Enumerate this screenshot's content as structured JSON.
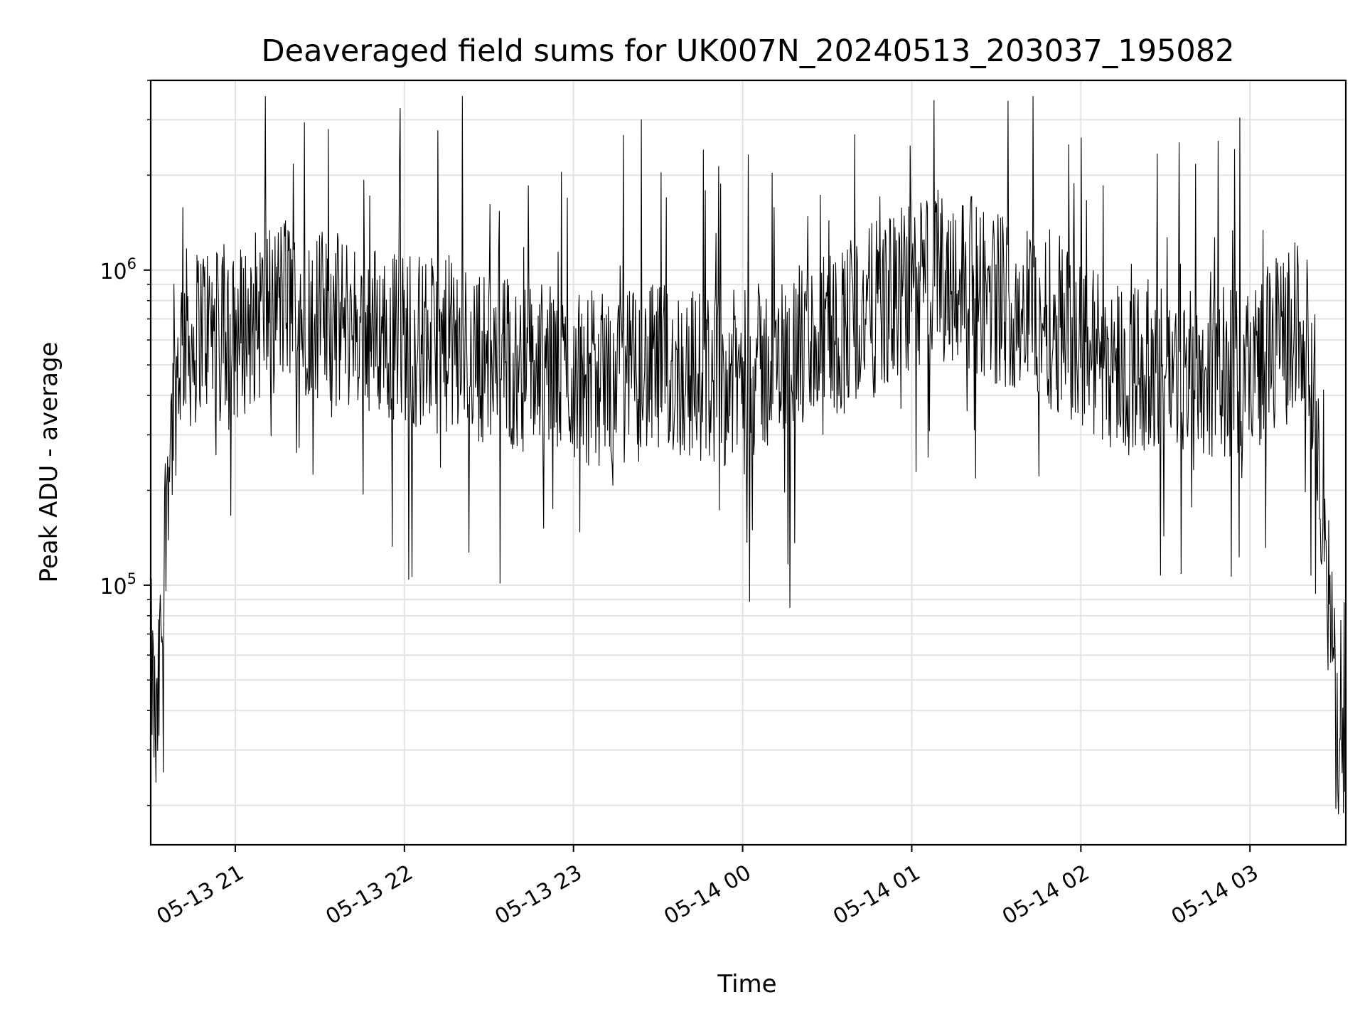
{
  "chart_data": {
    "type": "line",
    "title": "Deaveraged field sums for UK007N_20240513_203037_195082",
    "xlabel": "Time",
    "ylabel": "Peak ADU - average",
    "yscale": "log",
    "ylim": [
      15000,
      4000000
    ],
    "xlim": [
      "2024-05-13 20:30",
      "2024-05-14 03:34"
    ],
    "grid": true,
    "line_color": "#000000",
    "x_ticks": [
      {
        "value": "2024-05-13 21:00",
        "label": "05-13 21"
      },
      {
        "value": "2024-05-13 22:00",
        "label": "05-13 22"
      },
      {
        "value": "2024-05-13 23:00",
        "label": "05-13 23"
      },
      {
        "value": "2024-05-14 00:00",
        "label": "05-14 00"
      },
      {
        "value": "2024-05-14 01:00",
        "label": "05-14 01"
      },
      {
        "value": "2024-05-14 02:00",
        "label": "05-14 02"
      },
      {
        "value": "2024-05-14 03:00",
        "label": "05-14 03"
      }
    ],
    "y_ticks": [
      {
        "value": 100000,
        "base": "10",
        "exp": "5"
      },
      {
        "value": 1000000,
        "base": "10",
        "exp": "6"
      }
    ],
    "series": [
      {
        "x": [
          "2024-05-13 20:30",
          "2024-05-13 20:32",
          "2024-05-13 20:34",
          "2024-05-13 20:36",
          "2024-05-13 20:38",
          "2024-05-13 20:40",
          "2024-05-13 20:42",
          "2024-05-13 20:45",
          "2024-05-13 20:48",
          "2024-05-13 20:52",
          "2024-05-13 20:57",
          "2024-05-13 21:02",
          "2024-05-13 21:06",
          "2024-05-13 21:12",
          "2024-05-13 21:18",
          "2024-05-13 21:25",
          "2024-05-13 21:33",
          "2024-05-13 21:40",
          "2024-05-13 21:48",
          "2024-05-13 21:55",
          "2024-05-13 22:02",
          "2024-05-13 22:10",
          "2024-05-13 22:18",
          "2024-05-13 22:25",
          "2024-05-13 22:33",
          "2024-05-13 22:40",
          "2024-05-13 22:48",
          "2024-05-13 22:55",
          "2024-05-13 23:03",
          "2024-05-13 23:10",
          "2024-05-13 23:18",
          "2024-05-13 23:25",
          "2024-05-13 23:33",
          "2024-05-13 23:40",
          "2024-05-13 23:48",
          "2024-05-13 23:55",
          "2024-05-14 00:03",
          "2024-05-14 00:10",
          "2024-05-14 00:18",
          "2024-05-14 00:25",
          "2024-05-14 00:33",
          "2024-05-14 00:40",
          "2024-05-14 00:48",
          "2024-05-14 00:55",
          "2024-05-14 01:03",
          "2024-05-14 01:10",
          "2024-05-14 01:18",
          "2024-05-14 01:25",
          "2024-05-14 01:33",
          "2024-05-14 01:40",
          "2024-05-14 01:48",
          "2024-05-14 01:55",
          "2024-05-14 02:03",
          "2024-05-14 02:10",
          "2024-05-14 02:18",
          "2024-05-14 02:25",
          "2024-05-14 02:33",
          "2024-05-14 02:40",
          "2024-05-14 02:48",
          "2024-05-14 02:55",
          "2024-05-14 03:03",
          "2024-05-14 03:10",
          "2024-05-14 03:15",
          "2024-05-14 03:18",
          "2024-05-14 03:20",
          "2024-05-14 03:24",
          "2024-05-14 03:27",
          "2024-05-14 03:30",
          "2024-05-14 03:32",
          "2024-05-14 03:34"
        ],
        "y": [
          60000,
          30000,
          80000,
          250000,
          350000,
          520000,
          650000,
          560000,
          700000,
          620000,
          580000,
          640000,
          700000,
          760000,
          820000,
          750000,
          700000,
          680000,
          650000,
          640000,
          600000,
          580000,
          560000,
          540000,
          520000,
          500000,
          490000,
          470000,
          460000,
          450000,
          460000,
          470000,
          480000,
          470000,
          460000,
          450000,
          470000,
          500000,
          540000,
          580000,
          640000,
          700000,
          760000,
          820000,
          900000,
          980000,
          950000,
          860000,
          800000,
          760000,
          720000,
          640000,
          560000,
          520000,
          500000,
          490000,
          480000,
          480000,
          470000,
          470000,
          520000,
          580000,
          640000,
          700000,
          600000,
          350000,
          110000,
          50000,
          30000,
          40000
        ]
      }
    ]
  }
}
